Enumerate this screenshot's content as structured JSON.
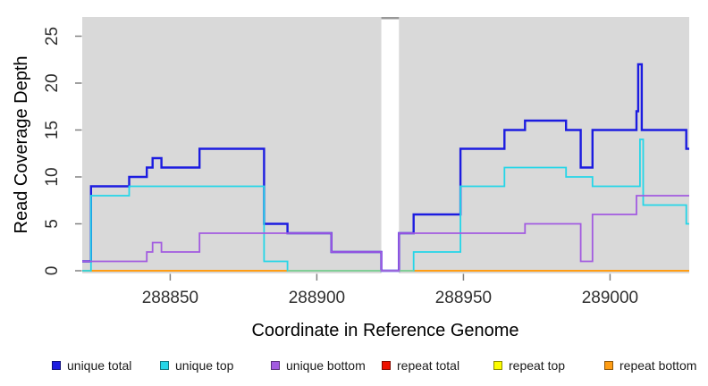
{
  "chart_data": {
    "type": "line",
    "subtype": "step-coverage-plot",
    "title": "",
    "xlabel": "Coordinate in Reference Genome",
    "ylabel": "Read Coverage Depth",
    "xlim": [
      288820,
      289027
    ],
    "ylim": [
      0,
      27
    ],
    "x_ticks": [
      "288850",
      "288900",
      "288950",
      "289000"
    ],
    "x_tick_values": [
      288850,
      288900,
      288950,
      289000
    ],
    "y_ticks": [
      "0",
      "5",
      "10",
      "15",
      "20",
      "25"
    ],
    "y_tick_values": [
      0,
      5,
      10,
      15,
      20,
      25
    ],
    "grid": false,
    "legend_position": "bottom",
    "colors": {
      "panel_background": "#d9d9d9",
      "gap_band": "#ffffff",
      "gap_band_cap": "#999999",
      "tick": "#808080",
      "tick_label": "#303030",
      "axis_label": "#000000",
      "zero_overlap": "#8ecf8e"
    },
    "gap_region": {
      "x_start": 288922,
      "x_end": 288928,
      "note": "white vertical band across panel (no data region)"
    },
    "zero_overlap_segment": {
      "x_start": 288890,
      "x_end": 288933,
      "color": "#8ecf8e",
      "note": "greenish segment on zero line where unique-top sits on repeat lines"
    },
    "series": [
      {
        "name": "unique total",
        "color": "#1c1ce0",
        "width": 2.4,
        "steps": [
          [
            288820,
            1
          ],
          [
            288823,
            9
          ],
          [
            288836,
            10
          ],
          [
            288842,
            11
          ],
          [
            288844,
            12
          ],
          [
            288847,
            11
          ],
          [
            288860,
            13
          ],
          [
            288882,
            5
          ],
          [
            288890,
            4
          ],
          [
            288905,
            2
          ],
          [
            288922,
            0
          ],
          [
            288928,
            4
          ],
          [
            288933,
            6
          ],
          [
            288949,
            13
          ],
          [
            288964,
            15
          ],
          [
            288971,
            16
          ],
          [
            288985,
            15
          ],
          [
            288990,
            11
          ],
          [
            288994,
            15
          ],
          [
            289009,
            17
          ],
          [
            289009.6,
            22
          ],
          [
            289010.8,
            15
          ],
          [
            289026,
            13
          ],
          [
            289027,
            13
          ]
        ]
      },
      {
        "name": "unique top",
        "color": "#24d6e8",
        "width": 1.8,
        "steps": [
          [
            288820,
            0
          ],
          [
            288823,
            8
          ],
          [
            288836,
            9
          ],
          [
            288882,
            1
          ],
          [
            288890,
            0
          ],
          [
            288933,
            2
          ],
          [
            288949,
            9
          ],
          [
            288964,
            11
          ],
          [
            288985,
            10
          ],
          [
            288994,
            9
          ],
          [
            289010.2,
            14
          ],
          [
            289011.3,
            7
          ],
          [
            289026,
            5
          ],
          [
            289027,
            5
          ]
        ]
      },
      {
        "name": "unique bottom",
        "color": "#a25be0",
        "width": 1.8,
        "steps": [
          [
            288820,
            1
          ],
          [
            288842,
            2
          ],
          [
            288844,
            3
          ],
          [
            288847,
            2
          ],
          [
            288860,
            4
          ],
          [
            288905,
            2
          ],
          [
            288922,
            0
          ],
          [
            288928,
            4
          ],
          [
            288971,
            5
          ],
          [
            288990,
            1
          ],
          [
            288994,
            6
          ],
          [
            289009,
            8
          ],
          [
            289027,
            8
          ]
        ]
      },
      {
        "name": "repeat total",
        "color": "#ee1100",
        "width": 1.8,
        "steps": [
          [
            288820,
            0
          ],
          [
            289027,
            0
          ]
        ]
      },
      {
        "name": "repeat top",
        "color": "#fdfd00",
        "width": 1.8,
        "steps": [
          [
            288820,
            0
          ],
          [
            289027,
            0
          ]
        ]
      },
      {
        "name": "repeat bottom",
        "color": "#ff9d14",
        "width": 2.0,
        "steps": [
          [
            288820,
            0
          ],
          [
            289027,
            0
          ]
        ]
      }
    ]
  }
}
